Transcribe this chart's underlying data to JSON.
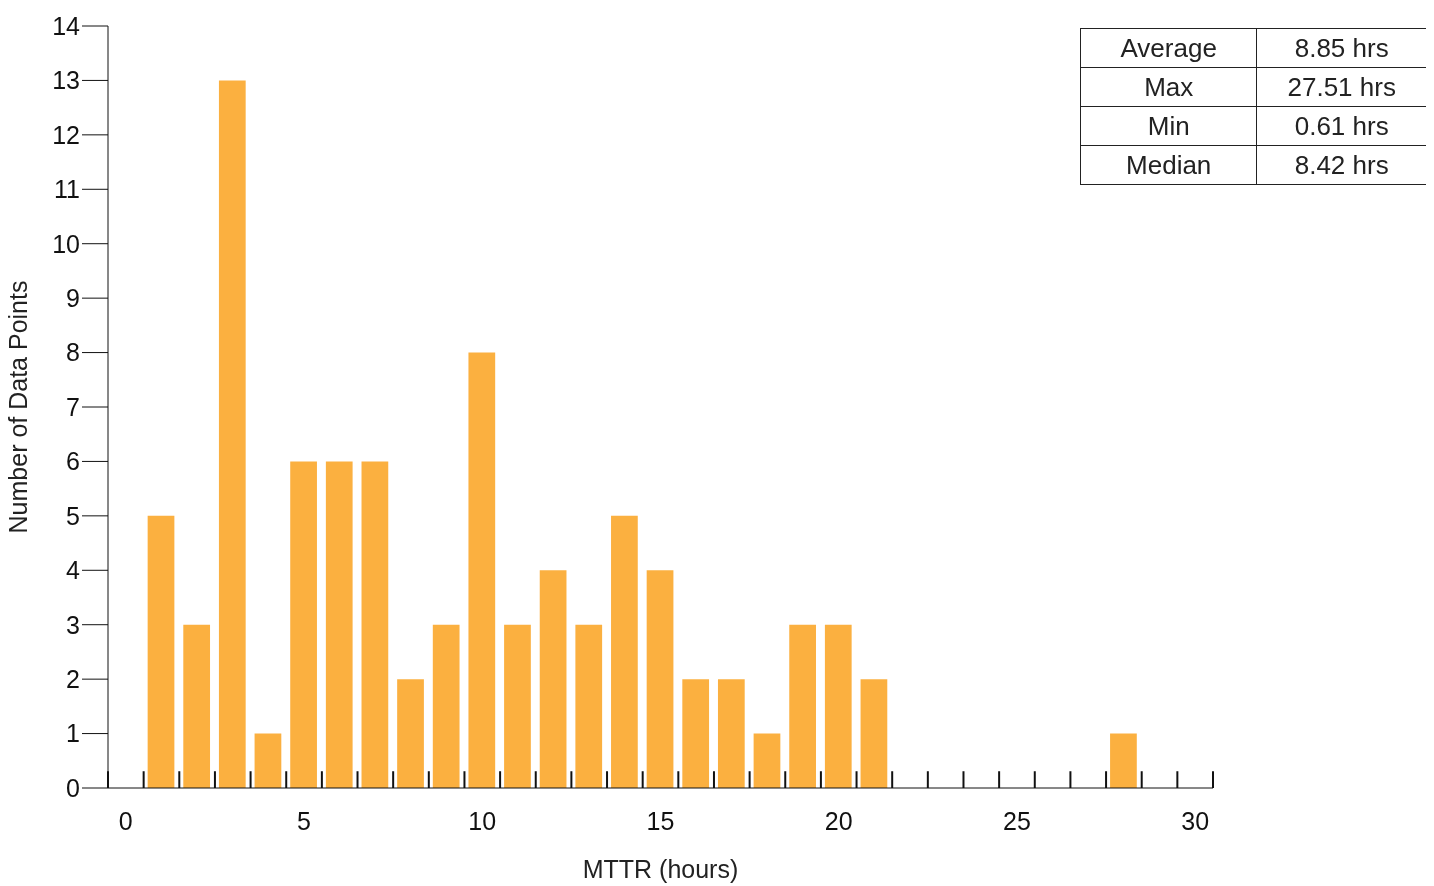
{
  "chart_data": {
    "type": "histogram",
    "xlabel": "MTTR (hours)",
    "ylabel": "Number of Data Points",
    "bins": [
      -0.5,
      0.5,
      1.5,
      2.5,
      3.5,
      4.5,
      5.5,
      6.5,
      7.5,
      8.5,
      9.5,
      10.5,
      11.5,
      12.5,
      13.5,
      14.5,
      15.5,
      16.5,
      17.5,
      18.5,
      19.5,
      20.5,
      21.5,
      22.5,
      23.5,
      24.5,
      25.5,
      26.5,
      27.5,
      28.5,
      29.5,
      30.5
    ],
    "values": [
      0,
      5,
      3,
      13,
      1,
      6,
      6,
      6,
      2,
      3,
      8,
      3,
      4,
      3,
      5,
      4,
      2,
      2,
      1,
      3,
      3,
      2,
      0,
      0,
      0,
      0,
      0,
      0,
      1,
      0,
      0
    ],
    "color": "#fbb040",
    "xlim": [
      -0.5,
      30.5
    ],
    "xticks": [
      0,
      5,
      10,
      15,
      20,
      25,
      30
    ],
    "ylim": [
      0,
      14
    ],
    "yticks": [
      0,
      1,
      2,
      3,
      4,
      5,
      6,
      7,
      8,
      9,
      10,
      11,
      12,
      13,
      14
    ],
    "grid": false,
    "legend": false,
    "annotations": [
      "Average",
      "8.85 hrs",
      "Max",
      "27.51 hrs",
      "Min",
      "0.61 hrs",
      "Median",
      "8.42 hrs"
    ]
  }
}
